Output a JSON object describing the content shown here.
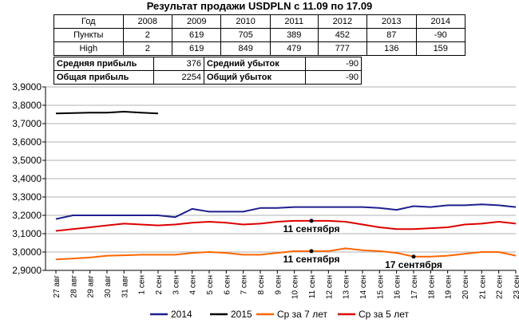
{
  "title": "Результат продажи USDPLN с 11.09 по 17.09",
  "stats_table": {
    "headers": [
      "Год",
      "2008",
      "2009",
      "2010",
      "2011",
      "2012",
      "2013",
      "2014"
    ],
    "rows": [
      {
        "label": "Пункты",
        "values": [
          "2",
          "619",
          "705",
          "389",
          "452",
          "87",
          "-90"
        ]
      },
      {
        "label": "High",
        "values": [
          "2",
          "619",
          "849",
          "479",
          "777",
          "136",
          "159"
        ]
      }
    ]
  },
  "summary": {
    "avg_profit_label": "Средняя прибыль",
    "avg_profit_value": "376",
    "avg_loss_label": "Средний убыток",
    "avg_loss_value": "-90",
    "total_profit_label": "Общая прибыль",
    "total_profit_value": "2254",
    "total_loss_label": "Общий убыток",
    "total_loss_value": "-90"
  },
  "chart_data": {
    "type": "line",
    "categories": [
      "27 авг",
      "28 авг",
      "29 авг",
      "30 авг",
      "31 авг",
      "1 сен",
      "2 сен",
      "3 сен",
      "4 сен",
      "5 сен",
      "6 сен",
      "7 сен",
      "8 сен",
      "9 сен",
      "10 сен",
      "11 сен",
      "12 сен",
      "13 сен",
      "14 сен",
      "15 сен",
      "16 сен",
      "17 сен",
      "18 сен",
      "19 сен",
      "20 сен",
      "21 сен",
      "22 сен",
      "23 сен"
    ],
    "yticks": [
      "2,9000",
      "3,0000",
      "3,1000",
      "3,2000",
      "3,3000",
      "3,4000",
      "3,5000",
      "3,6000",
      "3,7000",
      "3,8000",
      "3,9000"
    ],
    "ylim": [
      2.9,
      3.9
    ],
    "grid": true,
    "legend_position": "bottom",
    "series": [
      {
        "name": "2014",
        "color": "#1f1f8f",
        "values": [
          3.18,
          3.2,
          3.2,
          3.2,
          3.2,
          3.2,
          3.2,
          3.19,
          3.235,
          3.22,
          3.22,
          3.22,
          3.24,
          3.24,
          3.245,
          3.245,
          3.245,
          3.245,
          3.245,
          3.24,
          3.23,
          3.25,
          3.245,
          3.255,
          3.255,
          3.26,
          3.255,
          3.245
        ]
      },
      {
        "name": "2015",
        "color": "#000000",
        "values": [
          3.755,
          3.758,
          3.76,
          3.76,
          3.765,
          3.76,
          3.755,
          null,
          null,
          null,
          null,
          null,
          null,
          null,
          null,
          null,
          null,
          null,
          null,
          null,
          null,
          null,
          null,
          null,
          null,
          null,
          null,
          null
        ]
      },
      {
        "name": "Ср за 7 лет",
        "color": "#ff6600",
        "values": [
          2.96,
          2.965,
          2.97,
          2.98,
          2.982,
          2.985,
          2.985,
          2.985,
          2.995,
          3.0,
          2.995,
          2.985,
          2.985,
          2.995,
          3.005,
          3.005,
          3.005,
          3.02,
          3.01,
          3.005,
          2.995,
          2.975,
          2.975,
          2.98,
          2.99,
          3.0,
          3.0,
          2.98
        ]
      },
      {
        "name": "Ср за 5 лет",
        "color": "#dd0000",
        "values": [
          3.115,
          3.125,
          3.135,
          3.145,
          3.155,
          3.15,
          3.145,
          3.15,
          3.16,
          3.165,
          3.16,
          3.15,
          3.155,
          3.165,
          3.17,
          3.17,
          3.17,
          3.165,
          3.15,
          3.135,
          3.125,
          3.125,
          3.13,
          3.135,
          3.15,
          3.155,
          3.165,
          3.155
        ]
      }
    ],
    "annotations": [
      {
        "text": "11 сентября",
        "series": "Ср за 5 лет",
        "category": "11 сен",
        "value": 3.17
      },
      {
        "text": "11 сентября",
        "series": "Ср за 7 лет",
        "category": "11 сен",
        "value": 3.005
      },
      {
        "text": "17 сентября",
        "series": "Ср за 7 лет",
        "category": "17 сен",
        "value": 2.975
      }
    ]
  }
}
